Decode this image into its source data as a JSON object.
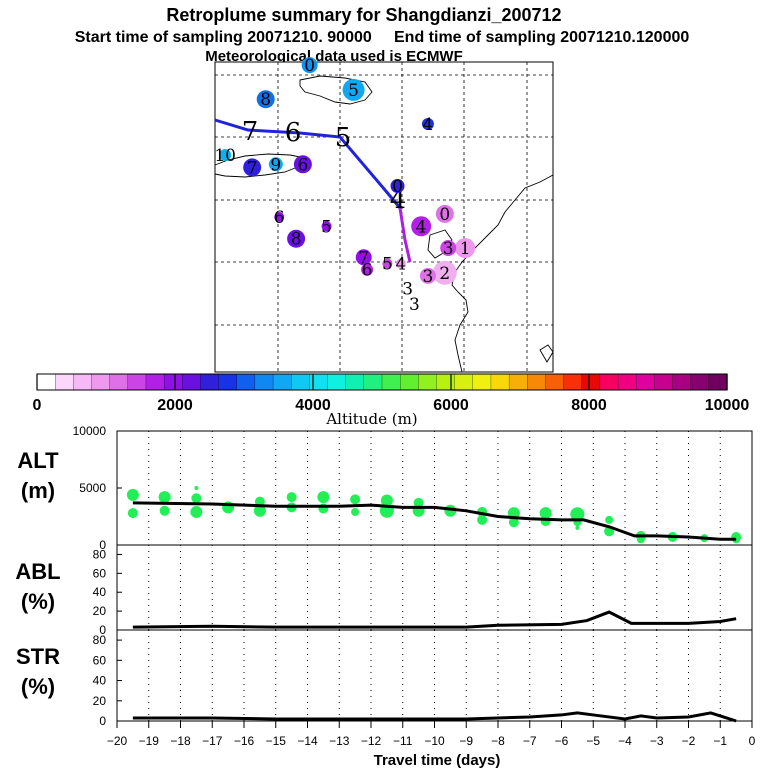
{
  "header": {
    "title": "Retroplume summary for Shangdianzi_200712",
    "sampling_line": "Start time of sampling 20071210. 90000     End time of sampling 20071210.120000",
    "met_line": "Meteorological data used is ECMWF"
  },
  "colorbar": {
    "label": "Altitude (m)",
    "tick_labels": [
      "0",
      "2000",
      "4000",
      "6000",
      "8000",
      "10000"
    ],
    "min": 0,
    "max": 10000,
    "colors": [
      "#ffffff",
      "#fbd8fb",
      "#f6b8f6",
      "#ee98ee",
      "#e070e8",
      "#cc44e6",
      "#b21fe6",
      "#9010e8",
      "#6a10e0",
      "#3020dc",
      "#1832e8",
      "#1060f0",
      "#1088f4",
      "#10a8f4",
      "#10c8f4",
      "#10e0f0",
      "#10f0e0",
      "#10f0b0",
      "#20f080",
      "#40f050",
      "#60f030",
      "#90f020",
      "#b8f010",
      "#d8f010",
      "#f0f010",
      "#f8d808",
      "#f8b008",
      "#f88808",
      "#f86008",
      "#f83008",
      "#e80808",
      "#f80060",
      "#f00080",
      "#e000a0",
      "#c80090",
      "#a80080",
      "#880070",
      "#700060"
    ]
  },
  "map": {
    "track": {
      "path_color_upper": "#2222dd",
      "path_color_lower": "#aa22dd",
      "labels": [
        "7",
        "6",
        "5",
        "4"
      ]
    },
    "markers": [
      {
        "label": "0",
        "lon": 0.28,
        "lat": 0.99,
        "color": "#1090f0",
        "size": 8
      },
      {
        "label": "5",
        "lon": 0.41,
        "lat": 0.91,
        "color": "#10a8f4",
        "size": 11
      },
      {
        "label": "8",
        "lon": 0.15,
        "lat": 0.88,
        "color": "#1070e8",
        "size": 9
      },
      {
        "label": "4",
        "lon": 0.63,
        "lat": 0.8,
        "color": "#2030dc",
        "size": 6
      },
      {
        "label": "10",
        "lon": 0.03,
        "lat": 0.7,
        "color": "#10b0f0",
        "size": 6
      },
      {
        "label": "7",
        "lon": 0.11,
        "lat": 0.66,
        "color": "#3020dc",
        "size": 9
      },
      {
        "label": "9",
        "lon": 0.18,
        "lat": 0.67,
        "color": "#10a8f0",
        "size": 7
      },
      {
        "label": "6",
        "lon": 0.26,
        "lat": 0.67,
        "color": "#6a10e0",
        "size": 9
      },
      {
        "label": "0",
        "lon": 0.54,
        "lat": 0.6,
        "color": "#3020dc",
        "size": 7
      },
      {
        "label": "6",
        "lon": 0.19,
        "lat": 0.5,
        "color": "#9010e8",
        "size": 5
      },
      {
        "label": "5",
        "lon": 0.33,
        "lat": 0.47,
        "color": "#9010e8",
        "size": 5
      },
      {
        "label": "8",
        "lon": 0.24,
        "lat": 0.43,
        "color": "#6a10e0",
        "size": 9
      },
      {
        "label": "4",
        "lon": 0.61,
        "lat": 0.47,
        "color": "#b21fe6",
        "size": 10
      },
      {
        "label": "0",
        "lon": 0.68,
        "lat": 0.51,
        "color": "#e070e8",
        "size": 9
      },
      {
        "label": "7",
        "lon": 0.44,
        "lat": 0.37,
        "color": "#9010e8",
        "size": 8
      },
      {
        "label": "6",
        "lon": 0.45,
        "lat": 0.33,
        "color": "#b21fe6",
        "size": 6
      },
      {
        "label": "1",
        "lon": 0.74,
        "lat": 0.4,
        "color": "#ee98ee",
        "size": 10
      },
      {
        "label": "3",
        "lon": 0.69,
        "lat": 0.4,
        "color": "#cc44e6",
        "size": 8
      },
      {
        "label": "2",
        "lon": 0.68,
        "lat": 0.32,
        "color": "#f0b0f0",
        "size": 12
      },
      {
        "label": "3",
        "lon": 0.63,
        "lat": 0.31,
        "color": "#e070e8",
        "size": 8
      },
      {
        "label": "5",
        "lon": 0.51,
        "lat": 0.35,
        "color": "#cc44e6",
        "size": 5
      },
      {
        "label": "4",
        "lon": 0.55,
        "lat": 0.35,
        "color": "#ee98ee",
        "size": 5
      },
      {
        "label": "3",
        "lon": 0.57,
        "lat": 0.27,
        "color": "#ffffff",
        "size": 4
      },
      {
        "label": "3",
        "lon": 0.59,
        "lat": 0.22,
        "color": "#ffffff",
        "size": 4
      }
    ]
  },
  "chart_data": [
    {
      "type": "scatter",
      "name": "ALT",
      "ylabel": "ALT\n(m)",
      "ylabel_line1": "ALT",
      "ylabel_line2": "(m)",
      "ylim": [
        0,
        10000
      ],
      "yticks": [
        "10000",
        "5000",
        "0"
      ],
      "median_line": {
        "x": [
          -19.5,
          -17,
          -15,
          -13,
          -12,
          -11,
          -10,
          -9,
          -8,
          -7,
          -6,
          -5.3,
          -4.5,
          -3.7,
          -3,
          -2,
          -1,
          -0.5
        ],
        "y": [
          3700,
          3600,
          3400,
          3400,
          3500,
          3300,
          3300,
          3000,
          2500,
          2300,
          2200,
          2200,
          1600,
          800,
          800,
          700,
          500,
          500
        ]
      },
      "points": [
        {
          "x": -19.5,
          "y": 4400,
          "size": 6
        },
        {
          "x": -19.5,
          "y": 2800,
          "size": 5
        },
        {
          "x": -18.5,
          "y": 4200,
          "size": 6
        },
        {
          "x": -18.5,
          "y": 3000,
          "size": 5
        },
        {
          "x": -17.5,
          "y": 4100,
          "size": 5
        },
        {
          "x": -17.5,
          "y": 2900,
          "size": 6
        },
        {
          "x": -17.5,
          "y": 5000,
          "size": 2
        },
        {
          "x": -16.5,
          "y": 3300,
          "size": 6
        },
        {
          "x": -15.5,
          "y": 3800,
          "size": 5
        },
        {
          "x": -15.5,
          "y": 3000,
          "size": 6
        },
        {
          "x": -14.5,
          "y": 4200,
          "size": 5
        },
        {
          "x": -14.5,
          "y": 3300,
          "size": 5
        },
        {
          "x": -13.5,
          "y": 4200,
          "size": 6
        },
        {
          "x": -13.5,
          "y": 3200,
          "size": 5
        },
        {
          "x": -12.5,
          "y": 4000,
          "size": 5
        },
        {
          "x": -12.5,
          "y": 2900,
          "size": 4
        },
        {
          "x": -11.5,
          "y": 3900,
          "size": 6
        },
        {
          "x": -11.5,
          "y": 3000,
          "size": 7
        },
        {
          "x": -10.5,
          "y": 3700,
          "size": 5
        },
        {
          "x": -10.5,
          "y": 3000,
          "size": 6
        },
        {
          "x": -9.5,
          "y": 3000,
          "size": 6
        },
        {
          "x": -8.5,
          "y": 2900,
          "size": 5
        },
        {
          "x": -8.5,
          "y": 2200,
          "size": 5
        },
        {
          "x": -7.5,
          "y": 2800,
          "size": 6
        },
        {
          "x": -7.5,
          "y": 2000,
          "size": 5
        },
        {
          "x": -6.5,
          "y": 2800,
          "size": 6
        },
        {
          "x": -6.5,
          "y": 2100,
          "size": 5
        },
        {
          "x": -5.5,
          "y": 2700,
          "size": 7
        },
        {
          "x": -5.5,
          "y": 2000,
          "size": 4
        },
        {
          "x": -5.5,
          "y": 1500,
          "size": 2
        },
        {
          "x": -4.5,
          "y": 2200,
          "size": 4
        },
        {
          "x": -4.5,
          "y": 1200,
          "size": 5
        },
        {
          "x": -3.5,
          "y": 800,
          "size": 5
        },
        {
          "x": -3.5,
          "y": 500,
          "size": 4
        },
        {
          "x": -2.5,
          "y": 700,
          "size": 5
        },
        {
          "x": -1.5,
          "y": 600,
          "size": 4
        },
        {
          "x": -0.5,
          "y": 700,
          "size": 5
        },
        {
          "x": -0.5,
          "y": 500,
          "size": 4
        }
      ]
    },
    {
      "type": "line",
      "name": "ABL",
      "ylabel_line1": "ABL",
      "ylabel_line2": "(%)",
      "ylim": [
        0,
        90
      ],
      "yticks": [
        "80",
        "60",
        "40",
        "20",
        "0"
      ],
      "x": [
        -19.5,
        -17,
        -15,
        -13,
        -11,
        -9,
        -8,
        -6,
        -5.2,
        -4.5,
        -3.8,
        -3,
        -2,
        -1,
        -0.5
      ],
      "y": [
        3,
        4,
        3,
        3,
        3,
        3,
        5,
        6,
        10,
        19,
        7,
        7,
        7,
        9,
        12
      ]
    },
    {
      "type": "line",
      "name": "STR",
      "ylabel_line1": "STR",
      "ylabel_line2": "(%)",
      "ylim": [
        0,
        90
      ],
      "yticks": [
        "80",
        "60",
        "40",
        "20",
        "0"
      ],
      "x": [
        -19.5,
        -17,
        -15,
        -13,
        -11,
        -9,
        -8,
        -7,
        -6,
        -5.5,
        -5,
        -4,
        -3.5,
        -3,
        -2,
        -1.3,
        -0.8,
        -0.5
      ],
      "y": [
        3,
        3,
        2,
        2,
        2,
        2,
        3,
        4,
        6,
        8,
        6,
        2,
        5,
        3,
        4,
        8,
        3,
        0
      ]
    }
  ],
  "xaxis": {
    "label": "Travel time (days)",
    "min": -20,
    "max": 0,
    "tick_labels": [
      "−20",
      "−19",
      "−18",
      "−17",
      "−16",
      "−15",
      "−14",
      "−13",
      "−12",
      "−11",
      "−10",
      "−9",
      "−8",
      "−7",
      "−6",
      "−5",
      "−4",
      "−3",
      "−2",
      "−1",
      "0"
    ]
  }
}
